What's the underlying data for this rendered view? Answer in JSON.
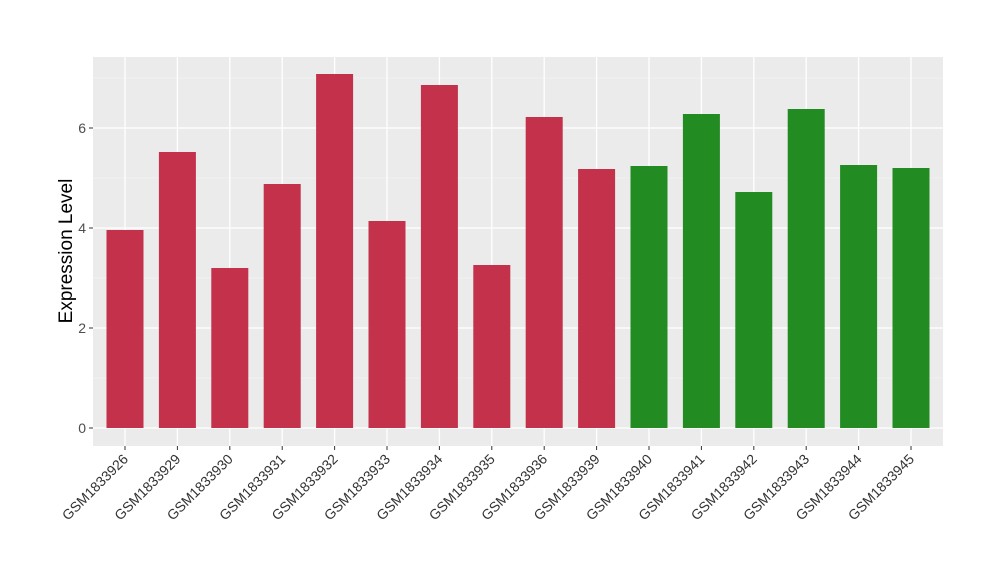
{
  "chart_data": {
    "type": "bar",
    "title": "",
    "xlabel": "",
    "ylabel": "Expression Level",
    "ylim": [
      -0.36,
      7.42
    ],
    "yticks": [
      0,
      2,
      4,
      6
    ],
    "grid": true,
    "legend": "none",
    "categories": [
      "GSM1833926",
      "GSM1833929",
      "GSM1833930",
      "GSM1833931",
      "GSM1833932",
      "GSM1833933",
      "GSM1833934",
      "GSM1833935",
      "GSM1833936",
      "GSM1833939",
      "GSM1833940",
      "GSM1833941",
      "GSM1833942",
      "GSM1833943",
      "GSM1833944",
      "GSM1833945"
    ],
    "values": [
      3.96,
      5.52,
      3.2,
      4.88,
      7.08,
      4.14,
      6.86,
      3.26,
      6.22,
      5.18,
      5.24,
      6.28,
      4.72,
      6.38,
      5.26,
      5.2
    ],
    "groups": [
      "a",
      "a",
      "a",
      "a",
      "a",
      "a",
      "a",
      "a",
      "a",
      "a",
      "b",
      "b",
      "b",
      "b",
      "b",
      "b"
    ],
    "colors": {
      "a": "#C3314A",
      "b": "#228B22"
    }
  }
}
